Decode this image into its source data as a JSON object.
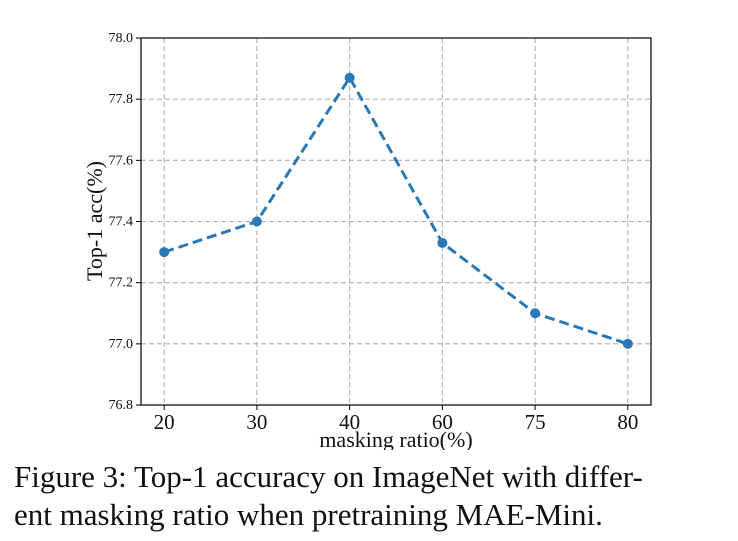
{
  "chart_data": {
    "type": "line",
    "categories": [
      "20",
      "30",
      "40",
      "60",
      "75",
      "80"
    ],
    "values": [
      77.3,
      77.4,
      77.87,
      77.33,
      77.1,
      77.0
    ],
    "xlabel": "masking ratio(%)",
    "ylabel": "Top-1 acc(%)",
    "ylim": [
      76.8,
      78.0
    ],
    "yticks": [
      "76.8",
      "77.0",
      "77.2",
      "77.4",
      "77.6",
      "77.8",
      "78.0"
    ],
    "grid": true,
    "line_style": "dashed",
    "marker": "circle",
    "color": "#2a78b5"
  },
  "caption": {
    "line1": "Figure 3: Top-1 accuracy on ImageNet with differ-",
    "line2": "ent masking ratio when pretraining MAE-Mini."
  }
}
